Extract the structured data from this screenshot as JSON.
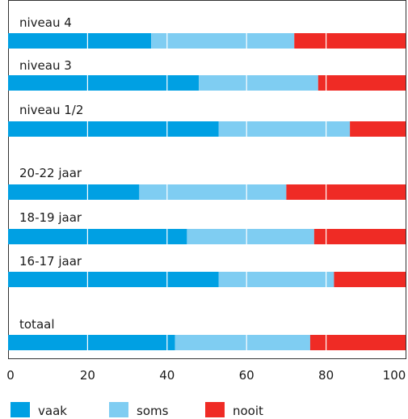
{
  "chart_data": {
    "type": "bar",
    "orientation": "horizontal",
    "stacked": true,
    "percent": true,
    "categories": [
      "niveau 4",
      "niveau 3",
      "niveau 1/2",
      "20-22 jaar",
      "18-19 jaar",
      "16-17 jaar",
      "totaal"
    ],
    "series": [
      {
        "name": "vaak",
        "color": "#00a0e3",
        "values": [
          36,
          48,
          53,
          33,
          45,
          53,
          42
        ]
      },
      {
        "name": "soms",
        "color": "#7fcdf2",
        "values": [
          36,
          30,
          33,
          37,
          32,
          29,
          34
        ]
      },
      {
        "name": "nooit",
        "color": "#ef2b25",
        "values": [
          28,
          22,
          14,
          30,
          23,
          18,
          24
        ]
      }
    ],
    "xlim": [
      0,
      100
    ],
    "xticks": [
      "0",
      "20",
      "40",
      "60",
      "80",
      "100"
    ],
    "vertical_gridlines": true,
    "legend_position": "bottom"
  }
}
